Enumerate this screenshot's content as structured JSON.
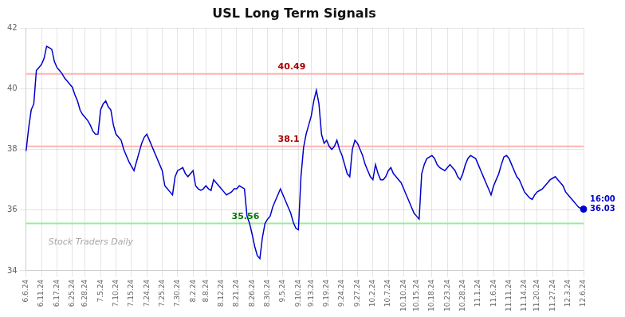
{
  "chart_data": {
    "type": "line",
    "title": "USL Long Term Signals",
    "watermark": "Stock Traders Daily",
    "categories": [
      "6.6.24",
      null,
      null,
      null,
      null,
      null,
      "6.11.24",
      null,
      null,
      null,
      null,
      null,
      "6.17.24",
      null,
      null,
      null,
      null,
      null,
      "6.25.24",
      null,
      null,
      null,
      null,
      "6.28.24",
      null,
      null,
      null,
      null,
      null,
      "7.5.24",
      null,
      null,
      null,
      null,
      null,
      "7.10.24",
      null,
      null,
      null,
      null,
      null,
      "7.15.24",
      null,
      null,
      null,
      null,
      null,
      "7.24.24",
      null,
      null,
      null,
      null,
      null,
      "7.25.24",
      null,
      null,
      null,
      null,
      null,
      "7.30.24",
      null,
      null,
      null,
      null,
      null,
      "8.2.24",
      null,
      null,
      null,
      null,
      "8.8.24",
      null,
      null,
      null,
      null,
      null,
      "8.12.24",
      null,
      null,
      null,
      null,
      null,
      "8.21.24",
      null,
      null,
      null,
      null,
      null,
      "8.26.24",
      null,
      null,
      null,
      null,
      null,
      "8.30.24",
      null,
      null,
      null,
      null,
      null,
      "9.5.24",
      null,
      null,
      null,
      null,
      null,
      "9.10.24",
      null,
      null,
      null,
      null,
      "9.13.24",
      null,
      null,
      null,
      null,
      null,
      "9.19.24",
      null,
      null,
      null,
      null,
      null,
      "9.24.24",
      null,
      null,
      null,
      null,
      null,
      "9.27.24",
      null,
      null,
      null,
      null,
      null,
      "10.2.24",
      null,
      null,
      null,
      null,
      null,
      "10.7.24",
      null,
      null,
      null,
      null,
      null,
      "10.10.24",
      null,
      null,
      null,
      null,
      "10.15.24",
      null,
      null,
      null,
      null,
      null,
      "10.18.24",
      null,
      null,
      null,
      null,
      null,
      "10.23.24",
      null,
      null,
      null,
      null,
      null,
      "10.28.24",
      null,
      null,
      null,
      null,
      null,
      "11.1.24",
      null,
      null,
      null,
      null,
      null,
      "11.6.24",
      null,
      null,
      null,
      null,
      null,
      "11.11.24",
      null,
      null,
      null,
      null,
      null,
      "11.14.24",
      null,
      null,
      null,
      null,
      "11.20.24",
      null,
      null,
      null,
      null,
      null,
      "11.27.24",
      null,
      null,
      null,
      null,
      null,
      "12.3.24",
      null,
      null,
      null,
      null,
      null,
      "12.6.24"
    ],
    "values": [
      37.95,
      38.7,
      39.3,
      39.5,
      40.6,
      40.7,
      40.8,
      41.0,
      41.4,
      41.35,
      41.3,
      40.9,
      40.7,
      40.6,
      40.5,
      40.35,
      40.25,
      40.15,
      40.05,
      39.8,
      39.6,
      39.3,
      39.15,
      39.05,
      38.95,
      38.8,
      38.6,
      38.5,
      38.5,
      39.3,
      39.5,
      39.6,
      39.4,
      39.3,
      38.8,
      38.5,
      38.4,
      38.3,
      38.0,
      37.8,
      37.6,
      37.45,
      37.3,
      37.6,
      37.9,
      38.2,
      38.4,
      38.5,
      38.3,
      38.1,
      37.9,
      37.7,
      37.5,
      37.3,
      36.8,
      36.7,
      36.6,
      36.5,
      37.1,
      37.3,
      37.35,
      37.4,
      37.2,
      37.1,
      37.2,
      37.3,
      36.8,
      36.7,
      36.65,
      36.7,
      36.8,
      36.7,
      36.65,
      37.0,
      36.9,
      36.8,
      36.7,
      36.6,
      36.5,
      36.55,
      36.6,
      36.7,
      36.7,
      36.8,
      36.75,
      36.7,
      35.8,
      35.56,
      35.2,
      34.8,
      34.5,
      34.4,
      35.1,
      35.56,
      35.7,
      35.8,
      36.1,
      36.3,
      36.5,
      36.7,
      36.5,
      36.3,
      36.1,
      35.9,
      35.6,
      35.4,
      35.35,
      37.1,
      38.05,
      38.5,
      38.8,
      39.1,
      39.6,
      39.95,
      39.5,
      38.5,
      38.2,
      38.3,
      38.1,
      38.0,
      38.1,
      38.3,
      38.0,
      37.8,
      37.5,
      37.2,
      37.1,
      38.0,
      38.3,
      38.2,
      38.0,
      37.8,
      37.5,
      37.3,
      37.1,
      37.0,
      37.5,
      37.2,
      37.0,
      37.0,
      37.1,
      37.3,
      37.4,
      37.2,
      37.1,
      37.0,
      36.9,
      36.7,
      36.5,
      36.3,
      36.1,
      35.9,
      35.8,
      35.7,
      37.2,
      37.5,
      37.7,
      37.75,
      37.8,
      37.7,
      37.5,
      37.4,
      37.35,
      37.3,
      37.4,
      37.5,
      37.4,
      37.3,
      37.1,
      37.0,
      37.2,
      37.5,
      37.7,
      37.8,
      37.75,
      37.7,
      37.5,
      37.3,
      37.1,
      36.9,
      36.7,
      36.5,
      36.8,
      37.0,
      37.2,
      37.5,
      37.75,
      37.8,
      37.7,
      37.5,
      37.3,
      37.1,
      37.0,
      36.8,
      36.6,
      36.5,
      36.4,
      36.35,
      36.5,
      36.6,
      36.65,
      36.7,
      36.8,
      36.9,
      37.0,
      37.05,
      37.1,
      37.0,
      36.9,
      36.8,
      36.6,
      36.5,
      36.4,
      36.3,
      36.2,
      36.1,
      36.05,
      36.03
    ],
    "color": "#0000cc",
    "ylim": [
      34,
      42
    ],
    "yticks": [
      34,
      36,
      38,
      40,
      42
    ],
    "grid": true,
    "reference_lines": [
      {
        "value": 40.49,
        "color": "#ffb3b3",
        "label": "40.49",
        "label_color": "#aa0000"
      },
      {
        "value": 38.1,
        "color": "#ffb3b3",
        "label": "38.1",
        "label_color": "#aa0000"
      },
      {
        "value": 35.56,
        "color": "#99ee99",
        "label": "35.56",
        "label_color": "#007700"
      }
    ],
    "last_point": {
      "value": 36.03,
      "color": "#0000cc",
      "label": "16:00\n36.03"
    }
  }
}
